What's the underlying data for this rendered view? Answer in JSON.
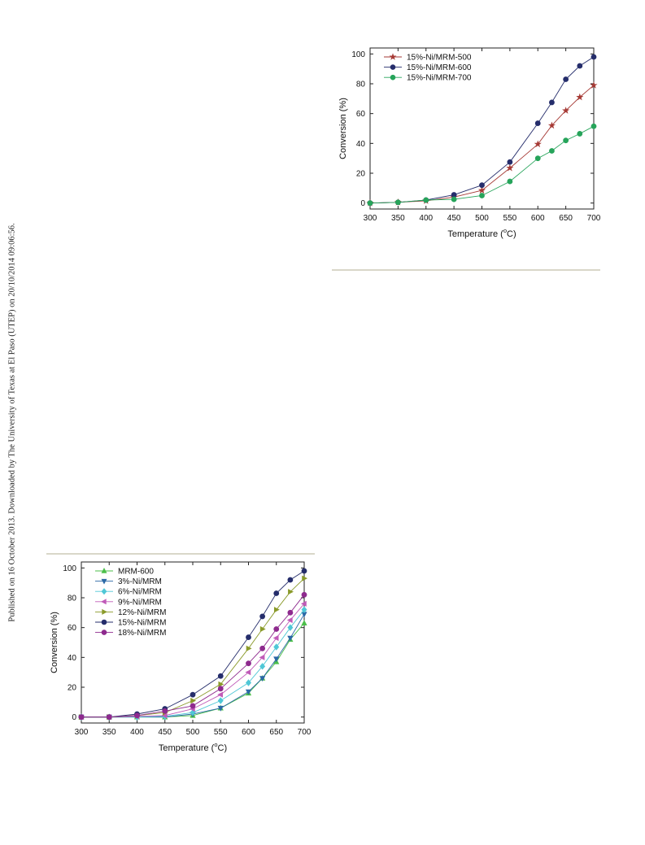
{
  "side_note": "Published on 16 October 2013. Downloaded by The University of Texas at El Paso (UTEP) on 20/10/2014 09:06:56.",
  "chart_data": [
    {
      "type": "line",
      "title": "",
      "xlabel": "Temperature (",
      "xlabel_sup": "o",
      "xlabel_tail": "C)",
      "ylabel": "Conversion (%)",
      "xlim": [
        300,
        700
      ],
      "ylim": [
        -4,
        104
      ],
      "x_ticks": [
        300,
        350,
        400,
        450,
        500,
        550,
        600,
        650,
        700
      ],
      "y_ticks": [
        0,
        20,
        40,
        60,
        80,
        100
      ],
      "grid": false,
      "legend_position": "top-left",
      "x": [
        300,
        350,
        400,
        450,
        500,
        550,
        600,
        625,
        650,
        675,
        700
      ],
      "series": [
        {
          "name": "15%-Ni/MRM-500",
          "color": "#a63a35",
          "marker": "star",
          "values": [
            0,
            0.5,
            1.5,
            4,
            8.5,
            23.5,
            39.5,
            52,
            62,
            71,
            79
          ]
        },
        {
          "name": "15%-Ni/MRM-600",
          "color": "#252d6b",
          "marker": "circle",
          "values": [
            0,
            0.5,
            2,
            5.5,
            12,
            27.5,
            53.5,
            67.5,
            83,
            92,
            98
          ]
        },
        {
          "name": "15%-Ni/MRM-700",
          "color": "#26a45a",
          "marker": "circle",
          "values": [
            0,
            0.5,
            2,
            2.5,
            5,
            14.5,
            30,
            35,
            42,
            46.5,
            51.5
          ]
        }
      ]
    },
    {
      "type": "line",
      "title": "",
      "xlabel": "Temperature (",
      "xlabel_sup": "o",
      "xlabel_tail": "C)",
      "ylabel": "Conversion (%)",
      "xlim": [
        300,
        700
      ],
      "ylim": [
        -4,
        104
      ],
      "x_ticks": [
        300,
        350,
        400,
        450,
        500,
        550,
        600,
        650,
        700
      ],
      "y_ticks": [
        0,
        20,
        40,
        60,
        80,
        100
      ],
      "grid": false,
      "legend_position": "top-left",
      "x": [
        300,
        350,
        400,
        450,
        500,
        550,
        600,
        625,
        650,
        675,
        700
      ],
      "series": [
        {
          "name": "MRM-600",
          "color": "#4bbf4a",
          "marker": "triangle-up",
          "values": [
            0,
            0,
            0,
            0,
            1,
            6,
            16,
            26,
            37,
            52,
            63
          ]
        },
        {
          "name": "3%-Ni/MRM",
          "color": "#2b68a6",
          "marker": "triangle-down",
          "values": [
            0,
            0,
            0,
            0,
            2,
            6,
            17,
            26,
            39,
            53,
            69
          ]
        },
        {
          "name": "6%-Ni/MRM",
          "color": "#4fc7d6",
          "marker": "diamond",
          "values": [
            0,
            0,
            0,
            0.5,
            3,
            11,
            23,
            34,
            47,
            60,
            72
          ]
        },
        {
          "name": "9%-Ni/MRM",
          "color": "#c05ab8",
          "marker": "triangle-left",
          "values": [
            0,
            0,
            0.5,
            1,
            5.5,
            15,
            30,
            40,
            53,
            65,
            76
          ]
        },
        {
          "name": "12%-Ni/MRM",
          "color": "#8a9a2a",
          "marker": "triangle-right",
          "values": [
            0,
            0,
            1,
            3,
            11,
            22,
            46,
            59,
            72,
            84,
            93
          ]
        },
        {
          "name": "15%-Ni/MRM",
          "color": "#252d6b",
          "marker": "circle",
          "values": [
            0,
            0,
            2,
            5.5,
            15,
            27.5,
            53.5,
            67.5,
            83,
            92,
            98
          ]
        },
        {
          "name": "18%-Ni/MRM",
          "color": "#8e2a8e",
          "marker": "circle",
          "values": [
            0,
            0,
            1,
            4,
            7.5,
            19,
            36,
            46,
            59,
            70,
            82
          ]
        }
      ]
    }
  ]
}
